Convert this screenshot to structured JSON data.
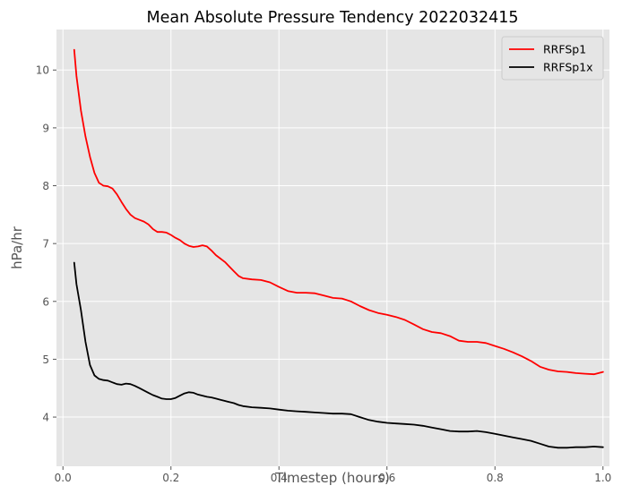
{
  "chart_data": {
    "type": "line",
    "title": "Mean Absolute Pressure Tendency 2022032415",
    "xlabel": "Timestep (hours)",
    "ylabel": "hPa/hr",
    "xlim": [
      -0.012,
      1.012
    ],
    "ylim": [
      3.15,
      10.7
    ],
    "xticks": [
      0.0,
      0.2,
      0.4,
      0.6,
      0.8,
      1.0
    ],
    "xtick_labels": [
      "0.0",
      "0.2",
      "0.4",
      "0.6",
      "0.8",
      "1.0"
    ],
    "yticks": [
      4,
      5,
      6,
      7,
      8,
      9,
      10
    ],
    "ytick_labels": [
      "4",
      "5",
      "6",
      "7",
      "8",
      "9",
      "10"
    ],
    "grid": true,
    "legend_position": "top-right",
    "background": "#e5e5e5",
    "series": [
      {
        "name": "RRFSp1",
        "color": "#ff0000",
        "x": [
          0.0208,
          0.025,
          0.0333,
          0.0417,
          0.05,
          0.0583,
          0.0667,
          0.075,
          0.0833,
          0.0917,
          0.1,
          0.1083,
          0.1167,
          0.125,
          0.1333,
          0.1417,
          0.15,
          0.1583,
          0.1667,
          0.175,
          0.1833,
          0.1917,
          0.2,
          0.2083,
          0.2167,
          0.225,
          0.2333,
          0.2417,
          0.25,
          0.2583,
          0.2667,
          0.275,
          0.2833,
          0.2917,
          0.3,
          0.3083,
          0.3167,
          0.325,
          0.3333,
          0.35,
          0.3667,
          0.3833,
          0.4,
          0.4167,
          0.4333,
          0.45,
          0.4667,
          0.4833,
          0.5,
          0.5167,
          0.5333,
          0.55,
          0.5667,
          0.5833,
          0.6,
          0.6167,
          0.6333,
          0.65,
          0.6667,
          0.6833,
          0.7,
          0.7167,
          0.7333,
          0.75,
          0.7667,
          0.7833,
          0.8,
          0.8167,
          0.8333,
          0.85,
          0.8667,
          0.8833,
          0.9,
          0.9167,
          0.9333,
          0.95,
          0.9667,
          0.9833,
          1.0
        ],
        "y": [
          10.35,
          9.9,
          9.3,
          8.85,
          8.5,
          8.22,
          8.05,
          8.0,
          7.99,
          7.95,
          7.85,
          7.72,
          7.6,
          7.5,
          7.44,
          7.41,
          7.38,
          7.33,
          7.25,
          7.2,
          7.2,
          7.19,
          7.15,
          7.1,
          7.06,
          7.0,
          6.96,
          6.94,
          6.95,
          6.97,
          6.95,
          6.88,
          6.8,
          6.74,
          6.68,
          6.6,
          6.52,
          6.44,
          6.4,
          6.38,
          6.37,
          6.33,
          6.25,
          6.18,
          6.15,
          6.15,
          6.14,
          6.1,
          6.06,
          6.05,
          6.0,
          5.92,
          5.85,
          5.8,
          5.77,
          5.73,
          5.68,
          5.6,
          5.52,
          5.47,
          5.45,
          5.4,
          5.32,
          5.3,
          5.3,
          5.28,
          5.23,
          5.18,
          5.12,
          5.05,
          4.97,
          4.87,
          4.82,
          4.79,
          4.78,
          4.76,
          4.75,
          4.74,
          4.78
        ]
      },
      {
        "name": "RRFSp1x",
        "color": "#000000",
        "x": [
          0.0208,
          0.025,
          0.0333,
          0.0417,
          0.05,
          0.0583,
          0.0667,
          0.075,
          0.0833,
          0.0917,
          0.1,
          0.1083,
          0.1167,
          0.125,
          0.1333,
          0.1417,
          0.15,
          0.1583,
          0.1667,
          0.175,
          0.1833,
          0.1917,
          0.2,
          0.2083,
          0.2167,
          0.225,
          0.2333,
          0.2417,
          0.25,
          0.2583,
          0.2667,
          0.275,
          0.2833,
          0.2917,
          0.3,
          0.3083,
          0.3167,
          0.325,
          0.3333,
          0.35,
          0.3667,
          0.3833,
          0.4,
          0.4167,
          0.4333,
          0.45,
          0.4667,
          0.4833,
          0.5,
          0.5167,
          0.5333,
          0.55,
          0.5667,
          0.5833,
          0.6,
          0.6167,
          0.6333,
          0.65,
          0.6667,
          0.6833,
          0.7,
          0.7167,
          0.7333,
          0.75,
          0.7667,
          0.7833,
          0.8,
          0.8167,
          0.8333,
          0.85,
          0.8667,
          0.8833,
          0.9,
          0.9167,
          0.9333,
          0.95,
          0.9667,
          0.9833,
          1.0
        ],
        "y": [
          6.67,
          6.3,
          5.85,
          5.3,
          4.9,
          4.72,
          4.66,
          4.64,
          4.63,
          4.6,
          4.57,
          4.56,
          4.58,
          4.57,
          4.54,
          4.5,
          4.46,
          4.42,
          4.38,
          4.35,
          4.32,
          4.31,
          4.31,
          4.33,
          4.37,
          4.41,
          4.43,
          4.42,
          4.39,
          4.37,
          4.35,
          4.34,
          4.32,
          4.3,
          4.28,
          4.26,
          4.24,
          4.21,
          4.19,
          4.17,
          4.16,
          4.15,
          4.13,
          4.11,
          4.1,
          4.09,
          4.08,
          4.07,
          4.06,
          4.06,
          4.05,
          4.0,
          3.95,
          3.92,
          3.9,
          3.89,
          3.88,
          3.87,
          3.85,
          3.82,
          3.79,
          3.76,
          3.75,
          3.75,
          3.76,
          3.74,
          3.71,
          3.68,
          3.65,
          3.62,
          3.59,
          3.54,
          3.49,
          3.47,
          3.47,
          3.48,
          3.48,
          3.49,
          3.48
        ]
      }
    ]
  }
}
